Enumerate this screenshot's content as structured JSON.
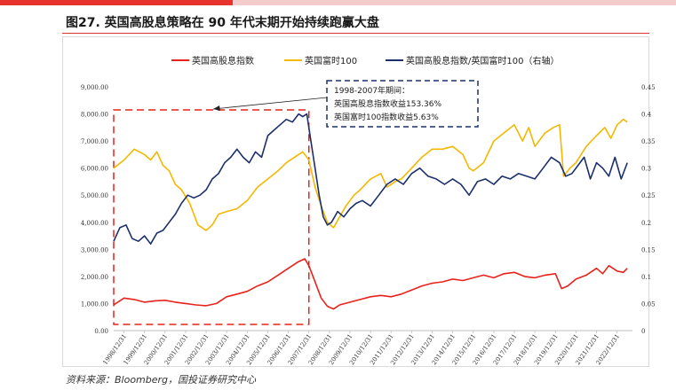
{
  "colors": {
    "header_bar": "#f4cccc",
    "header_accent": "#e8322e",
    "series_high_dividend": "#e8221b",
    "series_ftse100": "#f5b700",
    "series_ratio": "#1b2f6b",
    "annotation_box": "#1b2f6b",
    "highlight_box": "#e8221b"
  },
  "figure": {
    "title": "图27. 英国高股息策略在 90 年代末期开始持续跑赢大盘",
    "source": "资料来源：Bloomberg，国投证券研究中心"
  },
  "annotation": {
    "line1": "1998-2007年期间：",
    "line2": "英国高股息指数收益153.36%",
    "line3": "英国富时100指数收益5.63%"
  },
  "chart_data": {
    "type": "line",
    "title": "英国高股息策略在 90 年代末期开始持续跑赢大盘",
    "x_tick_labels": [
      "1998/12/31",
      "1999/12/31",
      "2000/12/31",
      "2001/12/31",
      "2002/12/31",
      "2003/12/31",
      "2004/12/31",
      "2005/12/31",
      "2006/12/31",
      "2007/12/31",
      "2008/12/31",
      "2009/12/31",
      "2010/12/31",
      "2011/12/31",
      "2012/12/31",
      "2013/12/31",
      "2014/12/31",
      "2015/12/31",
      "2016/12/31",
      "2017/12/31",
      "2018/12/31",
      "2019/12/31",
      "2020/12/31",
      "2021/12/31",
      "2022/12/31"
    ],
    "x_range": [
      1998.5,
      2023.75
    ],
    "left_axis": {
      "ylim": [
        0,
        9000
      ],
      "tick_labels": [
        "0.00",
        "1,000.00",
        "2,000.00",
        "3,000.00",
        "4,000.00",
        "5,000.00",
        "6,000.00",
        "7,000.00",
        "8,000.00",
        "9,000.00"
      ]
    },
    "right_axis": {
      "ylim": [
        0,
        0.45
      ],
      "tick_labels": [
        "0",
        "0.05",
        "0.1",
        "0.15",
        "0.2",
        "0.25",
        "0.3",
        "0.35",
        "0.4",
        "0.45"
      ]
    },
    "highlight_period": [
      1998.5,
      2008.0
    ],
    "series": [
      {
        "name": "英国高股息指数",
        "axis": "left",
        "x": [
          1998.5,
          1999.0,
          1999.5,
          2000.0,
          2000.5,
          2001.0,
          2001.5,
          2002.0,
          2002.5,
          2003.0,
          2003.5,
          2004.0,
          2004.5,
          2005.0,
          2005.5,
          2006.0,
          2006.5,
          2007.0,
          2007.5,
          2007.8,
          2008.0,
          2008.3,
          2008.6,
          2008.9,
          2009.2,
          2009.5,
          2010.0,
          2010.5,
          2011.0,
          2011.5,
          2012.0,
          2012.5,
          2013.0,
          2013.5,
          2014.0,
          2014.5,
          2015.0,
          2015.5,
          2016.0,
          2016.5,
          2017.0,
          2017.5,
          2018.0,
          2018.5,
          2019.0,
          2019.5,
          2020.0,
          2020.3,
          2020.6,
          2021.0,
          2021.5,
          2022.0,
          2022.3,
          2022.6,
          2023.0,
          2023.3,
          2023.5
        ],
        "values": [
          950,
          1200,
          1150,
          1050,
          1100,
          1120,
          1050,
          1000,
          950,
          920,
          1000,
          1250,
          1350,
          1450,
          1650,
          1800,
          2050,
          2300,
          2550,
          2650,
          2400,
          1800,
          1200,
          900,
          800,
          950,
          1050,
          1150,
          1250,
          1300,
          1250,
          1350,
          1500,
          1650,
          1750,
          1800,
          1900,
          1850,
          1950,
          2050,
          1950,
          2100,
          2150,
          2000,
          1950,
          2050,
          2100,
          1550,
          1650,
          1900,
          2050,
          2300,
          2100,
          2400,
          2200,
          2150,
          2300
        ]
      },
      {
        "name": "英国富时100",
        "axis": "left",
        "x": [
          1998.5,
          1999.0,
          1999.5,
          2000.0,
          2000.3,
          2000.6,
          2000.9,
          2001.2,
          2001.5,
          2001.8,
          2002.2,
          2002.6,
          2003.0,
          2003.3,
          2003.6,
          2004.0,
          2004.5,
          2005.0,
          2005.5,
          2006.0,
          2006.5,
          2006.9,
          2007.3,
          2007.7,
          2008.0,
          2008.3,
          2008.6,
          2008.9,
          2009.2,
          2009.5,
          2009.8,
          2010.2,
          2010.5,
          2011.0,
          2011.5,
          2011.8,
          2012.2,
          2012.5,
          2013.0,
          2013.5,
          2014.0,
          2014.5,
          2015.0,
          2015.5,
          2015.8,
          2016.0,
          2016.5,
          2017.0,
          2017.5,
          2018.0,
          2018.4,
          2018.7,
          2019.0,
          2019.5,
          2019.9,
          2020.2,
          2020.4,
          2020.7,
          2021.0,
          2021.5,
          2022.0,
          2022.4,
          2022.7,
          2023.0,
          2023.3,
          2023.5
        ],
        "values": [
          6000,
          6300,
          6700,
          6500,
          6300,
          6600,
          6100,
          5900,
          5400,
          5200,
          4700,
          3900,
          3700,
          3900,
          4300,
          4400,
          4500,
          4800,
          5300,
          5600,
          5900,
          6200,
          6400,
          6600,
          6300,
          5300,
          4600,
          4000,
          3800,
          4200,
          4600,
          5000,
          5200,
          5600,
          5800,
          5300,
          5500,
          5600,
          6000,
          6400,
          6700,
          6700,
          6800,
          6500,
          6000,
          5900,
          6200,
          7000,
          7300,
          7600,
          7000,
          7500,
          6800,
          7300,
          7500,
          7600,
          5700,
          6000,
          6200,
          6800,
          7200,
          7500,
          7100,
          7600,
          7800,
          7700
        ]
      },
      {
        "name": "英国高股息指数/英国富时100（右轴）",
        "axis": "right",
        "x": [
          1998.5,
          1998.8,
          1999.1,
          1999.4,
          1999.7,
          2000.0,
          2000.3,
          2000.6,
          2000.9,
          2001.2,
          2001.5,
          2001.8,
          2002.1,
          2002.4,
          2002.7,
          2003.0,
          2003.3,
          2003.6,
          2003.9,
          2004.2,
          2004.5,
          2004.8,
          2005.1,
          2005.4,
          2005.7,
          2006.0,
          2006.3,
          2006.6,
          2006.9,
          2007.2,
          2007.5,
          2007.7,
          2007.9,
          2008.1,
          2008.3,
          2008.5,
          2008.7,
          2008.9,
          2009.1,
          2009.4,
          2009.7,
          2010.0,
          2010.3,
          2010.6,
          2011.0,
          2011.4,
          2011.8,
          2012.2,
          2012.6,
          2013.0,
          2013.4,
          2013.8,
          2014.2,
          2014.6,
          2015.0,
          2015.4,
          2015.8,
          2016.2,
          2016.6,
          2017.0,
          2017.4,
          2017.8,
          2018.2,
          2018.6,
          2019.0,
          2019.4,
          2019.8,
          2020.2,
          2020.5,
          2020.8,
          2021.1,
          2021.4,
          2021.7,
          2022.0,
          2022.3,
          2022.6,
          2022.9,
          2023.2,
          2023.5
        ],
        "values": [
          0.165,
          0.19,
          0.195,
          0.17,
          0.165,
          0.175,
          0.16,
          0.18,
          0.185,
          0.2,
          0.215,
          0.235,
          0.25,
          0.245,
          0.25,
          0.26,
          0.28,
          0.29,
          0.31,
          0.32,
          0.335,
          0.32,
          0.31,
          0.33,
          0.32,
          0.36,
          0.37,
          0.38,
          0.39,
          0.385,
          0.4,
          0.395,
          0.4,
          0.35,
          0.3,
          0.25,
          0.21,
          0.195,
          0.2,
          0.22,
          0.21,
          0.225,
          0.235,
          0.24,
          0.23,
          0.25,
          0.27,
          0.28,
          0.27,
          0.29,
          0.3,
          0.285,
          0.28,
          0.27,
          0.28,
          0.27,
          0.25,
          0.275,
          0.28,
          0.27,
          0.285,
          0.28,
          0.29,
          0.285,
          0.28,
          0.3,
          0.32,
          0.31,
          0.285,
          0.29,
          0.305,
          0.32,
          0.28,
          0.31,
          0.3,
          0.285,
          0.32,
          0.28,
          0.31
        ]
      }
    ]
  }
}
